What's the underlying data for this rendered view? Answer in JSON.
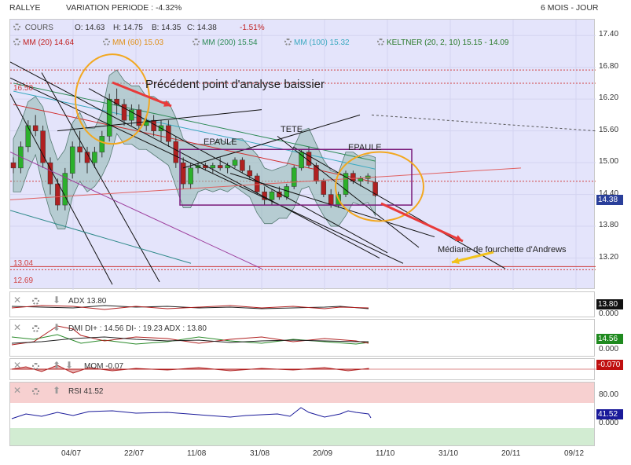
{
  "header": {
    "symbol": "RALLYE",
    "variation": "VARIATION PERIODE : -4.32%",
    "period": "6 MOIS - JOUR"
  },
  "legend": {
    "cours": "COURS",
    "open": "O: 14.63",
    "high": "H: 14.75",
    "low": "B: 14.35",
    "close": "C: 14.38",
    "change": "-1.51%",
    "mm20": "MM (20) 14.64",
    "mm60": "MM (60) 15.03",
    "mm200": "MM (200) 15.54",
    "mm100": "MM (100) 15.32",
    "keltner": "KELTNER (20, 2, 10)  15.15 - 14.09"
  },
  "annotations": {
    "precedent": "Précédent point d'analyse baissier",
    "tete": "TETE",
    "epaule_left": "EPAULE",
    "epaule_right": "EPAULE",
    "mediane": "Médiane de fourchette d'Andrews",
    "level_1650": "16.50",
    "level_1304": "13.04",
    "level_1269": "12.69"
  },
  "indicators": {
    "adx": "ADX  13.80",
    "dmi": "DMI DI+ : 14.56 DI- : 19.23 ADX : 13.80",
    "mom": "MOM  -0.07",
    "rsi": "RSI  41.52"
  },
  "axis_boxes": {
    "price": "14.38",
    "adx": "13.80",
    "adx_zero": "0.000",
    "dmi": "14.56",
    "dmi_zero": "0.000",
    "mom": "-0.070",
    "rsi_80": "80.00",
    "rsi": "41.52",
    "rsi_0": "0.000"
  },
  "colors": {
    "bull": "#2bb02b",
    "bear": "#b02020",
    "band": "#8fb8b0",
    "plot_bg": "#e4e4fb",
    "mm20": "#d23030",
    "mm60": "#e0901a",
    "mm200": "#2e8b57",
    "mm100": "#3aa9c0",
    "keltner": "#2a7a2a"
  },
  "chart_data": {
    "type": "candlestick",
    "ylim": [
      12.6,
      17.7
    ],
    "yticks": [
      "17.40",
      "16.80",
      "16.20",
      "15.60",
      "15.00",
      "14.40",
      "13.80",
      "13.20"
    ],
    "xticks": [
      "04/07",
      "22/07",
      "11/08",
      "31/08",
      "20/09",
      "11/10",
      "31/10",
      "20/11",
      "09/12"
    ],
    "candles": [
      [
        0,
        15.0,
        15.1,
        14.8,
        14.9
      ],
      [
        1,
        14.9,
        15.4,
        14.8,
        15.3
      ],
      [
        2,
        15.3,
        15.8,
        15.2,
        15.7
      ],
      [
        3,
        15.7,
        15.9,
        15.5,
        15.6
      ],
      [
        4,
        15.6,
        15.7,
        14.9,
        15.0
      ],
      [
        5,
        15.0,
        15.1,
        14.4,
        14.6
      ],
      [
        6,
        14.6,
        14.7,
        14.1,
        14.2
      ],
      [
        7,
        14.2,
        14.9,
        14.1,
        14.8
      ],
      [
        8,
        14.8,
        15.4,
        14.7,
        15.3
      ],
      [
        9,
        15.3,
        15.6,
        15.0,
        15.2
      ],
      [
        10,
        15.2,
        15.3,
        14.8,
        15.0
      ],
      [
        11,
        15.0,
        15.3,
        14.9,
        15.2
      ],
      [
        12,
        15.2,
        15.6,
        15.1,
        15.5
      ],
      [
        13,
        15.5,
        16.3,
        15.4,
        16.2
      ],
      [
        14,
        16.2,
        16.4,
        15.9,
        16.1
      ],
      [
        15,
        16.1,
        16.2,
        15.7,
        15.8
      ],
      [
        16,
        15.8,
        16.1,
        15.7,
        16.0
      ],
      [
        17,
        16.0,
        16.1,
        15.6,
        15.7
      ],
      [
        18,
        15.7,
        15.9,
        15.6,
        15.8
      ],
      [
        19,
        15.8,
        15.9,
        15.5,
        15.6
      ],
      [
        20,
        15.6,
        15.8,
        15.4,
        15.7
      ],
      [
        21,
        15.7,
        15.8,
        15.3,
        15.4
      ],
      [
        22,
        15.4,
        15.5,
        14.9,
        15.0
      ],
      [
        23,
        15.0,
        15.1,
        14.5,
        14.6
      ],
      [
        24,
        14.6,
        15.0,
        14.5,
        14.9
      ],
      [
        25,
        14.9,
        15.0,
        14.8,
        14.95
      ],
      [
        26,
        14.95,
        15.0,
        14.85,
        14.9
      ],
      [
        27,
        14.9,
        15.0,
        14.8,
        14.95
      ],
      [
        28,
        14.95,
        15.1,
        14.85,
        14.9
      ],
      [
        29,
        14.9,
        15.0,
        14.8,
        14.95
      ],
      [
        30,
        14.95,
        15.1,
        14.9,
        15.05
      ],
      [
        31,
        15.05,
        15.1,
        14.8,
        14.85
      ],
      [
        32,
        14.85,
        14.95,
        14.7,
        14.75
      ],
      [
        33,
        14.75,
        14.8,
        14.4,
        14.45
      ],
      [
        34,
        14.45,
        14.55,
        14.2,
        14.3
      ],
      [
        35,
        14.3,
        14.5,
        14.2,
        14.45
      ],
      [
        36,
        14.45,
        14.55,
        14.3,
        14.35
      ],
      [
        37,
        14.35,
        14.6,
        14.3,
        14.55
      ],
      [
        38,
        14.55,
        14.95,
        14.5,
        14.9
      ],
      [
        39,
        14.9,
        15.25,
        14.85,
        15.2
      ],
      [
        40,
        15.2,
        15.3,
        14.9,
        14.95
      ],
      [
        41,
        14.95,
        15.0,
        14.6,
        14.65
      ],
      [
        42,
        14.65,
        14.7,
        14.35,
        14.4
      ],
      [
        43,
        14.4,
        14.5,
        14.15,
        14.2
      ],
      [
        44,
        14.2,
        14.45,
        14.15,
        14.4
      ],
      [
        45,
        14.4,
        14.85,
        14.35,
        14.8
      ],
      [
        46,
        14.8,
        14.85,
        14.6,
        14.65
      ],
      [
        47,
        14.65,
        14.75,
        14.55,
        14.7
      ],
      [
        48,
        14.7,
        14.8,
        14.6,
        14.75
      ],
      [
        49,
        14.63,
        14.75,
        14.35,
        14.38
      ]
    ]
  }
}
